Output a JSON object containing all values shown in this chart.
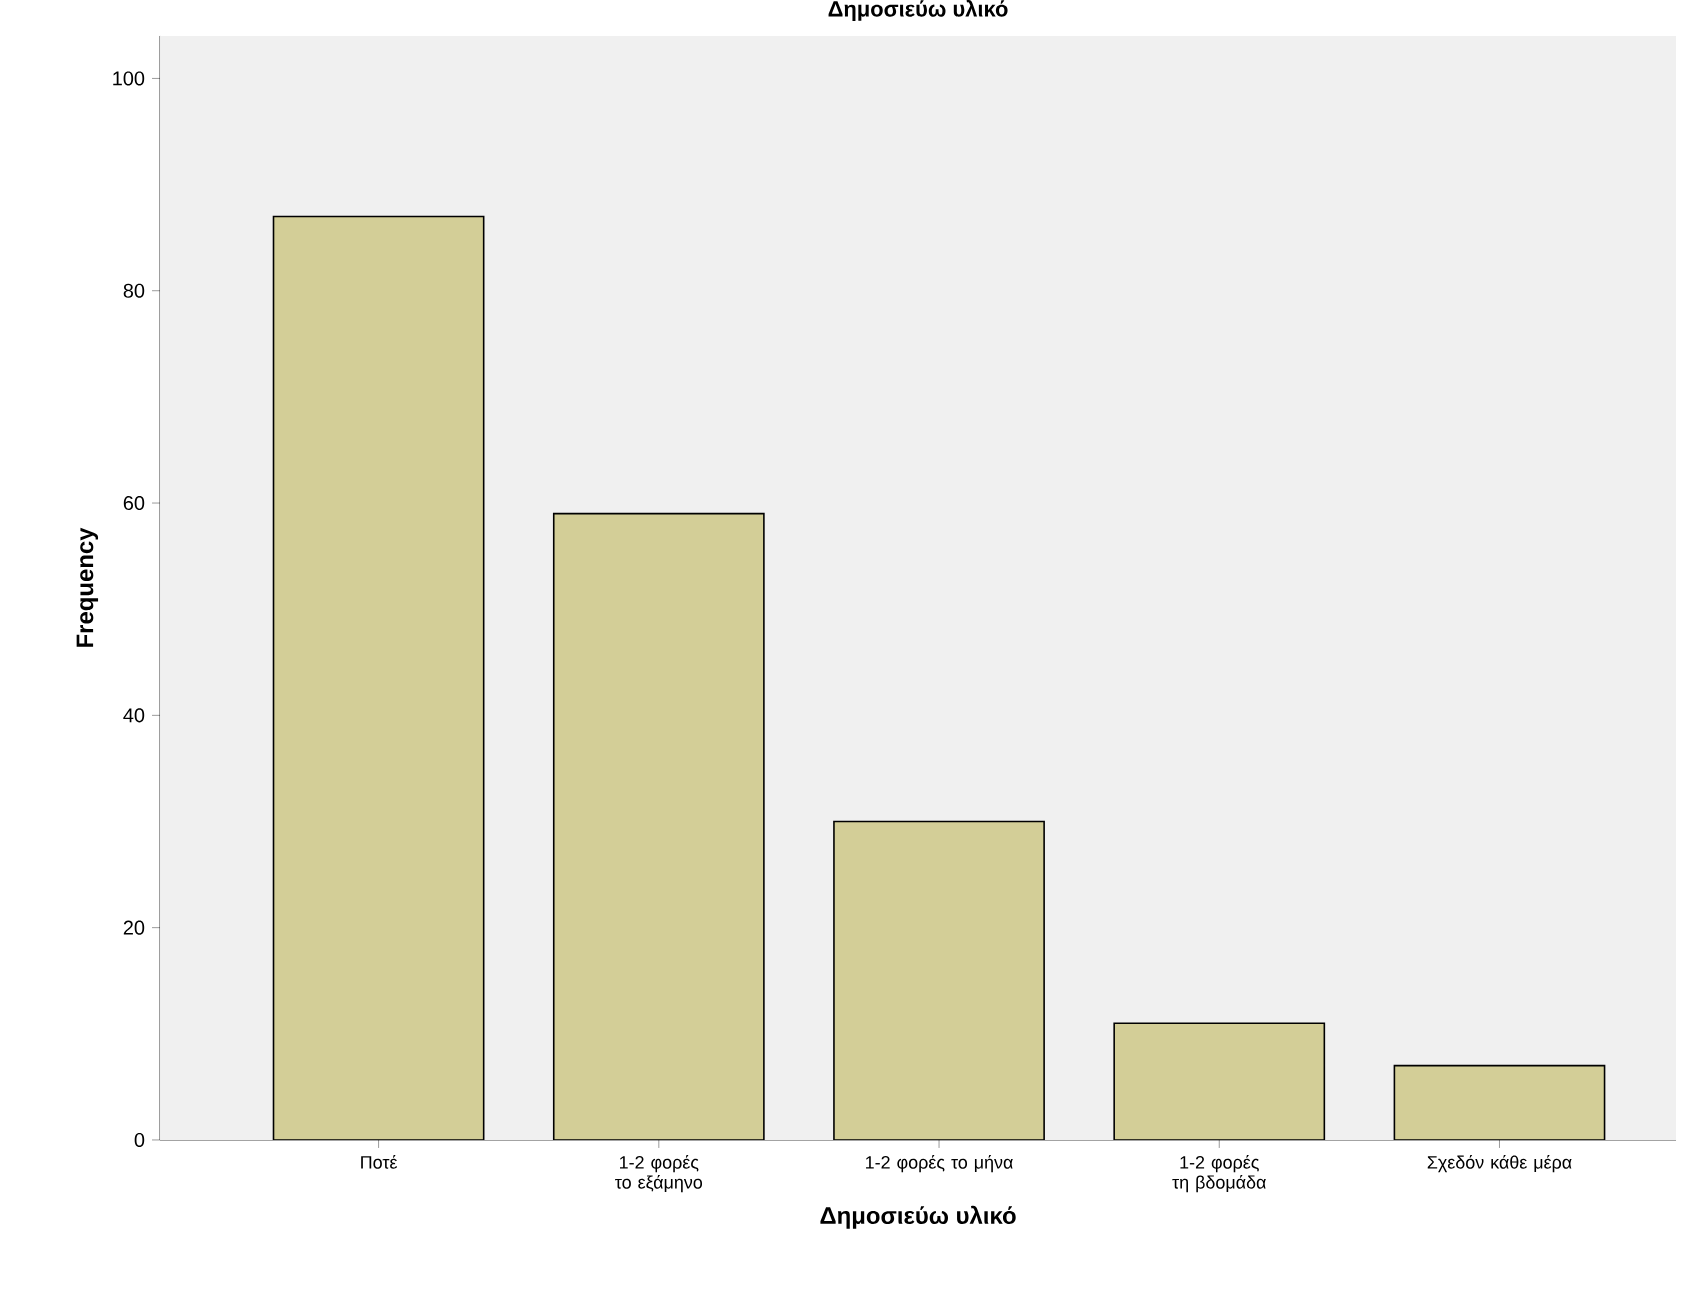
{
  "chart_data": {
    "type": "bar",
    "title": "Δημοσιεύω υλικό",
    "xlabel": "Δημοσιεύω υλικό",
    "ylabel": "Frequency",
    "categories": [
      "Ποτέ",
      "1-2 φορές το εξάμηνο",
      "1-2 φορές το μήνα",
      "1-2 φορές τη βδομάδα",
      "Σχεδόν κάθε μέρα"
    ],
    "values": [
      87,
      59,
      30,
      11,
      7
    ],
    "color": "#d3ce97",
    "ylim": [
      0,
      104
    ],
    "yticks": [
      0,
      20,
      40,
      60,
      80,
      100
    ]
  }
}
